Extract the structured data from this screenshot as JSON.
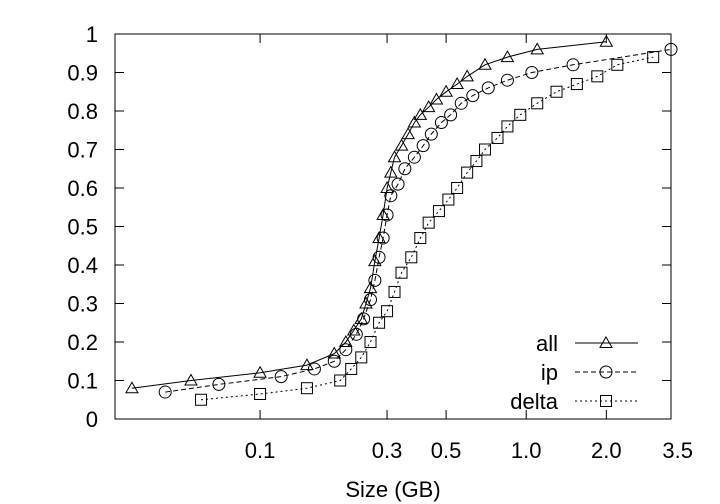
{
  "chart_data": {
    "type": "line",
    "title": "",
    "xlabel": "Size (GB)",
    "ylabel": "",
    "xscale": "log",
    "xlim": [
      0.0285,
      3.5
    ],
    "ylim": [
      0,
      1
    ],
    "xticks": [
      {
        "value": 0.1,
        "label": "0.1"
      },
      {
        "value": 0.3,
        "label": "0.3"
      },
      {
        "value": 0.5,
        "label": "0.5"
      },
      {
        "value": 1.0,
        "label": "1.0"
      },
      {
        "value": 2.0,
        "label": "2.0"
      },
      {
        "value": 3.5,
        "label": "3.5"
      }
    ],
    "yticks": [
      {
        "value": 0,
        "label": "0"
      },
      {
        "value": 0.1,
        "label": "0.1"
      },
      {
        "value": 0.2,
        "label": "0.2"
      },
      {
        "value": 0.3,
        "label": "0.3"
      },
      {
        "value": 0.4,
        "label": "0.4"
      },
      {
        "value": 0.5,
        "label": "0.5"
      },
      {
        "value": 0.6,
        "label": "0.6"
      },
      {
        "value": 0.7,
        "label": "0.7"
      },
      {
        "value": 0.8,
        "label": "0.8"
      },
      {
        "value": 0.9,
        "label": "0.9"
      },
      {
        "value": 1,
        "label": "1"
      }
    ],
    "grid": false,
    "legend_position": "bottom-right",
    "series": [
      {
        "name": "all",
        "marker": "triangle",
        "line": "solid",
        "color": "#000000",
        "x": [
          0.033,
          0.055,
          0.1,
          0.15,
          0.19,
          0.21,
          0.225,
          0.24,
          0.25,
          0.26,
          0.27,
          0.28,
          0.29,
          0.3,
          0.31,
          0.32,
          0.34,
          0.36,
          0.38,
          0.4,
          0.43,
          0.46,
          0.5,
          0.55,
          0.6,
          0.7,
          0.85,
          1.1,
          2.0
        ],
        "y": [
          0.08,
          0.1,
          0.12,
          0.14,
          0.17,
          0.2,
          0.23,
          0.26,
          0.3,
          0.34,
          0.41,
          0.47,
          0.53,
          0.6,
          0.64,
          0.68,
          0.71,
          0.74,
          0.77,
          0.79,
          0.81,
          0.83,
          0.85,
          0.87,
          0.89,
          0.92,
          0.94,
          0.96,
          0.98
        ]
      },
      {
        "name": "ip",
        "marker": "circle",
        "line": "dashed",
        "color": "#000000",
        "x": [
          0.044,
          0.07,
          0.12,
          0.16,
          0.19,
          0.21,
          0.23,
          0.245,
          0.26,
          0.27,
          0.28,
          0.29,
          0.3,
          0.31,
          0.33,
          0.35,
          0.38,
          0.41,
          0.44,
          0.48,
          0.52,
          0.57,
          0.63,
          0.72,
          0.85,
          1.05,
          1.5,
          3.5
        ],
        "y": [
          0.07,
          0.09,
          0.11,
          0.13,
          0.15,
          0.18,
          0.22,
          0.26,
          0.31,
          0.36,
          0.42,
          0.47,
          0.53,
          0.58,
          0.61,
          0.65,
          0.68,
          0.71,
          0.74,
          0.77,
          0.79,
          0.82,
          0.84,
          0.86,
          0.88,
          0.9,
          0.92,
          0.96
        ]
      },
      {
        "name": "delta",
        "marker": "square",
        "line": "dotted",
        "color": "#000000",
        "x": [
          0.06,
          0.1,
          0.15,
          0.2,
          0.22,
          0.24,
          0.26,
          0.28,
          0.3,
          0.32,
          0.34,
          0.37,
          0.4,
          0.43,
          0.47,
          0.51,
          0.55,
          0.6,
          0.65,
          0.7,
          0.78,
          0.85,
          0.95,
          1.1,
          1.3,
          1.55,
          1.85,
          2.2,
          3.0
        ],
        "y": [
          0.05,
          0.065,
          0.08,
          0.1,
          0.13,
          0.16,
          0.2,
          0.25,
          0.28,
          0.33,
          0.38,
          0.42,
          0.47,
          0.51,
          0.54,
          0.57,
          0.6,
          0.64,
          0.67,
          0.7,
          0.73,
          0.76,
          0.79,
          0.82,
          0.85,
          0.87,
          0.89,
          0.92,
          0.94
        ]
      }
    ]
  }
}
